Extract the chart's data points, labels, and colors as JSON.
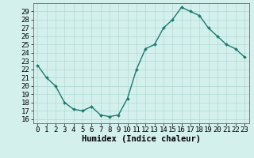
{
  "x": [
    0,
    1,
    2,
    3,
    4,
    5,
    6,
    7,
    8,
    9,
    10,
    11,
    12,
    13,
    14,
    15,
    16,
    17,
    18,
    19,
    20,
    21,
    22,
    23
  ],
  "y": [
    22.5,
    21.0,
    20.0,
    18.0,
    17.2,
    17.0,
    17.5,
    16.5,
    16.3,
    16.5,
    18.5,
    22.0,
    24.5,
    25.0,
    27.0,
    28.0,
    29.5,
    29.0,
    28.5,
    27.0,
    26.0,
    25.0,
    24.5,
    23.5
  ],
  "line_color": "#1a7a6e",
  "marker": "D",
  "marker_size": 2.0,
  "line_width": 1.0,
  "bg_color": "#d4f0ec",
  "grid_color": "#b0d8d4",
  "xlabel": "Humidex (Indice chaleur)",
  "xlabel_fontsize": 7.5,
  "tick_fontsize": 6.5,
  "ylim": [
    15.5,
    30
  ],
  "yticks": [
    16,
    17,
    18,
    19,
    20,
    21,
    22,
    23,
    24,
    25,
    26,
    27,
    28,
    29
  ],
  "xlim": [
    -0.5,
    23.5
  ],
  "xticks": [
    0,
    1,
    2,
    3,
    4,
    5,
    6,
    7,
    8,
    9,
    10,
    11,
    12,
    13,
    14,
    15,
    16,
    17,
    18,
    19,
    20,
    21,
    22,
    23
  ]
}
